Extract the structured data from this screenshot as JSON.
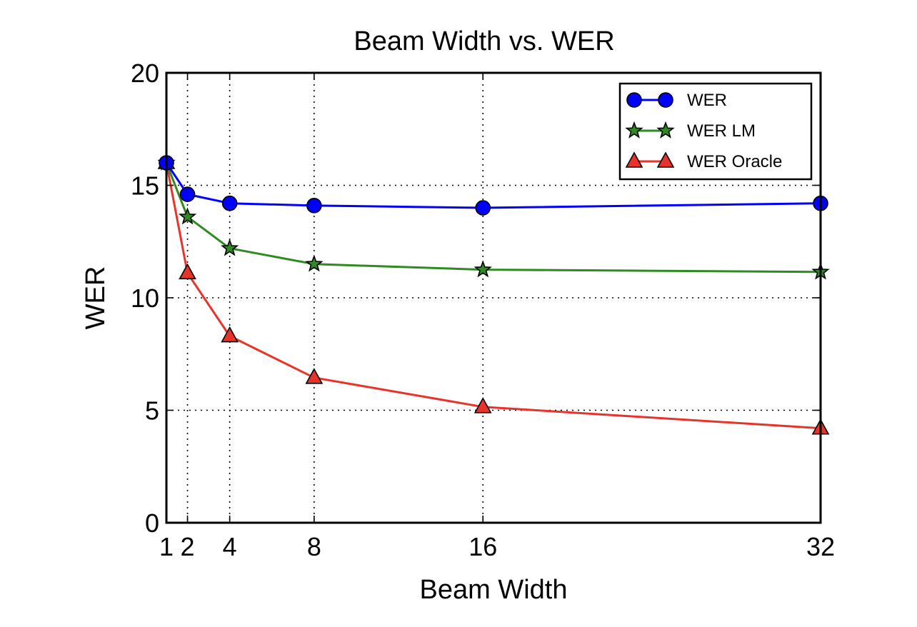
{
  "chart_data": {
    "type": "line",
    "title": "Beam Width vs. WER",
    "xlabel": "Beam Width",
    "ylabel": "WER",
    "xlim": [
      1,
      32
    ],
    "ylim": [
      0,
      20
    ],
    "x": [
      1,
      2,
      4,
      8,
      16,
      32
    ],
    "xticks": [
      "1",
      "2",
      "4",
      "8",
      "16",
      "32"
    ],
    "yticks": [
      0,
      5,
      10,
      15,
      20
    ],
    "grid": true,
    "legend_position": "top-right",
    "series": [
      {
        "name": "WER",
        "color": "#0000ff",
        "marker": "circle",
        "values": [
          16.0,
          14.6,
          14.2,
          14.1,
          14.0,
          14.2
        ]
      },
      {
        "name": "WER LM",
        "color": "#2e8b22",
        "marker": "star",
        "values": [
          16.0,
          13.6,
          12.2,
          11.5,
          11.25,
          11.15
        ]
      },
      {
        "name": "WER Oracle",
        "color": "#e8332a",
        "marker": "triangle",
        "values": [
          16.0,
          11.1,
          8.3,
          6.45,
          5.15,
          4.2
        ]
      }
    ]
  }
}
